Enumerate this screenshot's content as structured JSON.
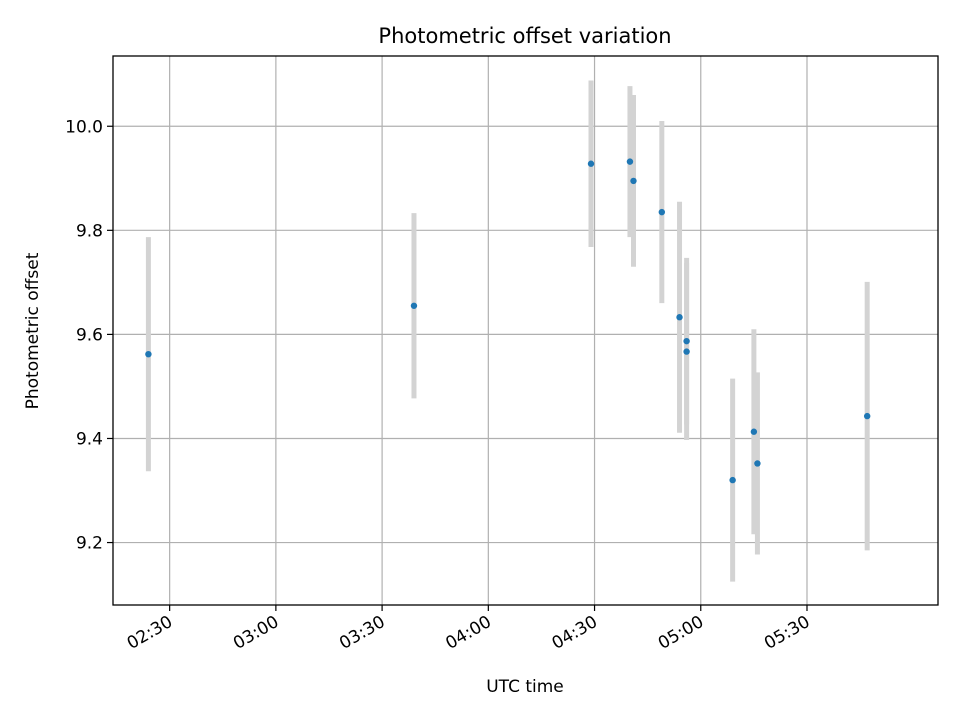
{
  "chart_data": {
    "type": "scatter",
    "title": "Photometric offset variation",
    "xlabel": "UTC time",
    "ylabel": "Photometric offset",
    "grid": true,
    "xlim": [
      "02:14",
      "06:07"
    ],
    "ylim": [
      9.08,
      10.135
    ],
    "x_ticks": [
      "02:30",
      "03:00",
      "03:30",
      "04:00",
      "04:30",
      "05:00",
      "05:30"
    ],
    "y_ticks": [
      "9.2",
      "9.4",
      "9.6",
      "9.8",
      "10.0"
    ],
    "point_color": "#1f77b4",
    "errorbar_color": "#d3d3d3",
    "series": [
      {
        "points": [
          {
            "x": "02:24",
            "y": 9.562,
            "yerr": 0.225
          },
          {
            "x": "03:39",
            "y": 9.655,
            "yerr": 0.178
          },
          {
            "x": "04:29",
            "y": 9.928,
            "yerr": 0.16
          },
          {
            "x": "04:40",
            "y": 9.932,
            "yerr": 0.145
          },
          {
            "x": "04:41",
            "y": 9.895,
            "yerr": 0.165
          },
          {
            "x": "04:49",
            "y": 9.835,
            "yerr": 0.175
          },
          {
            "x": "04:54",
            "y": 9.633,
            "yerr": 0.222
          },
          {
            "x": "04:56",
            "y": 9.567,
            "yerr": 0.17
          },
          {
            "x": "04:56",
            "y": 9.587,
            "yerr": 0.16
          },
          {
            "x": "05:09",
            "y": 9.32,
            "yerr": 0.195
          },
          {
            "x": "05:15",
            "y": 9.413,
            "yerr": 0.197
          },
          {
            "x": "05:16",
            "y": 9.352,
            "yerr": 0.175
          },
          {
            "x": "05:47",
            "y": 9.443,
            "yerr": 0.258
          }
        ]
      }
    ]
  }
}
